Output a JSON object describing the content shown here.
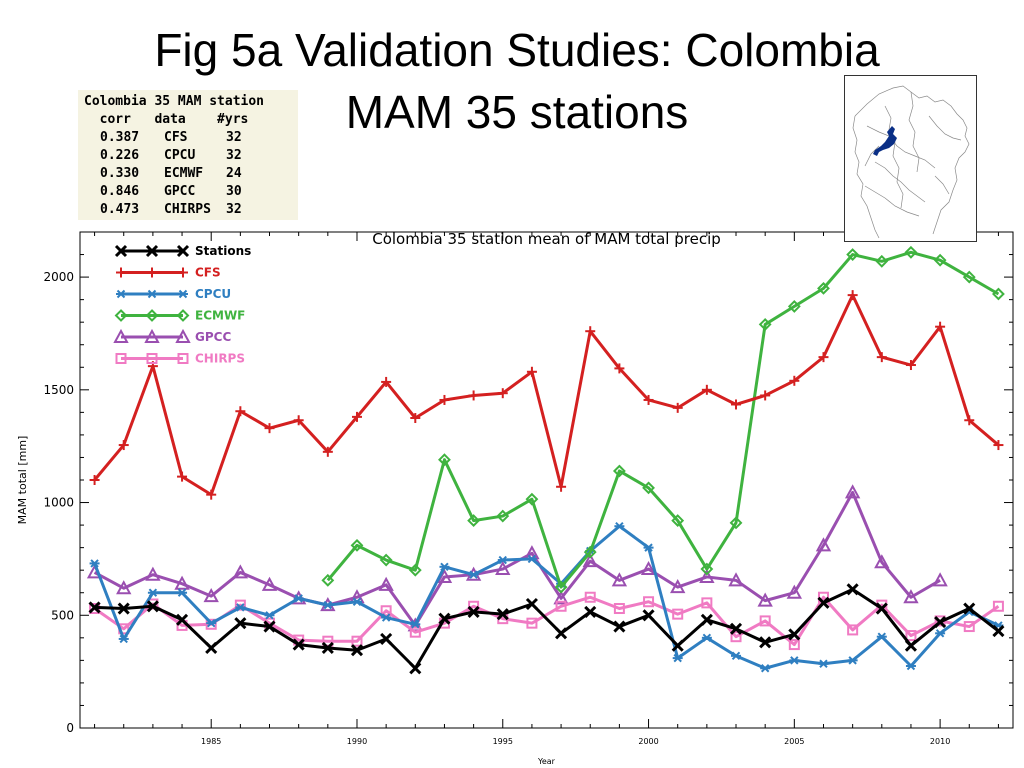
{
  "slide": {
    "title_line1": "Fig 5a Validation Studies: Colombia",
    "title_line2": "MAM   35 stations"
  },
  "stats_table": {
    "header": [
      "Colombia 35 MAM station",
      "  corr   data    #yrs"
    ],
    "rows": [
      {
        "corr": "0.387",
        "data": "CFS",
        "yrs": "32"
      },
      {
        "corr": "0.226",
        "data": "CPCU",
        "yrs": "32"
      },
      {
        "corr": "0.330",
        "data": "ECMWF",
        "yrs": "24"
      },
      {
        "corr": "0.846",
        "data": "GPCC",
        "yrs": "30"
      },
      {
        "corr": "0.473",
        "data": "CHIRPS",
        "yrs": "32"
      }
    ]
  },
  "map": {
    "highlight_color": "#0a2f86"
  },
  "chart_data": {
    "type": "line",
    "title": "Colombia 35 station mean of MAM total precip",
    "xlabel": "Year",
    "ylabel": "MAM total  [mm]",
    "xlim": [
      1980.5,
      2012.5
    ],
    "ylim": [
      0,
      2200
    ],
    "xticks": [
      1985,
      1990,
      1995,
      2000,
      2005,
      2010
    ],
    "yticks": [
      0,
      500,
      1000,
      1500,
      2000
    ],
    "legend_position": "top-left",
    "series": [
      {
        "name": "Stations",
        "color": "#000000",
        "marker": "x",
        "x": [
          1981,
          1982,
          1983,
          1984,
          1985,
          1986,
          1987,
          1988,
          1989,
          1990,
          1991,
          1992,
          1993,
          1994,
          1995,
          1996,
          1997,
          1998,
          1999,
          2000,
          2001,
          2002,
          2003,
          2004,
          2005,
          2006,
          2007,
          2008,
          2009,
          2010,
          2011,
          2012
        ],
        "values": [
          535,
          530,
          540,
          480,
          355,
          465,
          450,
          370,
          355,
          345,
          395,
          265,
          485,
          515,
          505,
          550,
          420,
          515,
          450,
          500,
          365,
          480,
          440,
          380,
          415,
          555,
          615,
          530,
          365,
          470,
          530,
          430
        ]
      },
      {
        "name": "CFS",
        "color": "#d42020",
        "marker": "plus",
        "x": [
          1981,
          1982,
          1983,
          1984,
          1985,
          1986,
          1987,
          1988,
          1989,
          1990,
          1991,
          1992,
          1993,
          1994,
          1995,
          1996,
          1997,
          1998,
          1999,
          2000,
          2001,
          2002,
          2003,
          2004,
          2005,
          2006,
          2007,
          2008,
          2009,
          2010,
          2011,
          2012
        ],
        "values": [
          1100,
          1255,
          1605,
          1115,
          1035,
          1405,
          1330,
          1365,
          1225,
          1380,
          1535,
          1375,
          1455,
          1475,
          1485,
          1580,
          1070,
          1760,
          1595,
          1455,
          1420,
          1500,
          1435,
          1475,
          1540,
          1645,
          1920,
          1645,
          1610,
          1780,
          1365,
          1255
        ]
      },
      {
        "name": "CPCU",
        "color": "#2f7fc1",
        "marker": "asterisk",
        "x": [
          1981,
          1982,
          1983,
          1984,
          1985,
          1986,
          1987,
          1988,
          1989,
          1990,
          1991,
          1992,
          1993,
          1994,
          1995,
          1996,
          1997,
          1998,
          1999,
          2000,
          2001,
          2002,
          2003,
          2004,
          2005,
          2006,
          2007,
          2008,
          2009,
          2010,
          2011,
          2012
        ],
        "values": [
          730,
          395,
          600,
          600,
          465,
          535,
          500,
          575,
          545,
          560,
          490,
          460,
          715,
          680,
          745,
          750,
          640,
          785,
          895,
          800,
          310,
          400,
          320,
          265,
          300,
          285,
          300,
          405,
          275,
          420,
          515,
          455
        ]
      },
      {
        "name": "ECMWF",
        "color": "#3fb33f",
        "marker": "diamond",
        "x": [
          1989,
          1990,
          1991,
          1992,
          1993,
          1994,
          1995,
          1996,
          1997,
          1998,
          1999,
          2000,
          2001,
          2002,
          2003,
          2004,
          2005,
          2006,
          2007,
          2008,
          2009,
          2010,
          2011,
          2012
        ],
        "values": [
          655,
          810,
          745,
          700,
          1190,
          920,
          940,
          1015,
          625,
          780,
          1140,
          1065,
          920,
          705,
          910,
          1790,
          1870,
          1950,
          2100,
          2070,
          2110,
          2075,
          2000,
          1925
        ]
      },
      {
        "name": "GPCC",
        "color": "#9a4fb0",
        "marker": "triangle",
        "x": [
          1981,
          1982,
          1983,
          1984,
          1985,
          1986,
          1987,
          1988,
          1989,
          1990,
          1991,
          1992,
          1993,
          1994,
          1995,
          1996,
          1997,
          1998,
          1999,
          2000,
          2001,
          2002,
          2003,
          2004,
          2005,
          2006,
          2007,
          2008,
          2009,
          2010
        ],
        "values": [
          690,
          620,
          680,
          640,
          585,
          690,
          635,
          575,
          545,
          580,
          635,
          455,
          670,
          680,
          705,
          775,
          575,
          740,
          655,
          705,
          625,
          670,
          655,
          565,
          600,
          810,
          1045,
          735,
          580,
          655
        ]
      },
      {
        "name": "CHIRPS",
        "color": "#f07ac3",
        "marker": "square",
        "x": [
          1981,
          1982,
          1983,
          1984,
          1985,
          1986,
          1987,
          1988,
          1989,
          1990,
          1991,
          1992,
          1993,
          1994,
          1995,
          1996,
          1997,
          1998,
          1999,
          2000,
          2001,
          2002,
          2003,
          2004,
          2005,
          2006,
          2007,
          2008,
          2009,
          2010,
          2011,
          2012
        ],
        "values": [
          530,
          440,
          550,
          455,
          460,
          545,
          465,
          390,
          385,
          385,
          520,
          425,
          465,
          540,
          485,
          465,
          540,
          580,
          530,
          560,
          505,
          555,
          405,
          475,
          370,
          580,
          435,
          545,
          410,
          475,
          450,
          540
        ]
      }
    ]
  }
}
